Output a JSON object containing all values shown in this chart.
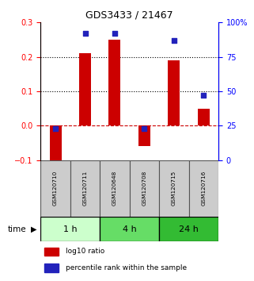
{
  "title": "GDS3433 / 21467",
  "samples": [
    "GSM120710",
    "GSM120711",
    "GSM120648",
    "GSM120708",
    "GSM120715",
    "GSM120716"
  ],
  "log10_ratio": [
    -0.12,
    0.21,
    0.25,
    -0.06,
    0.19,
    0.05
  ],
  "percentile_rank": [
    23,
    92,
    92,
    23,
    87,
    47
  ],
  "left_ylim": [
    -0.1,
    0.3
  ],
  "right_ylim": [
    0,
    100
  ],
  "left_yticks": [
    -0.1,
    0.0,
    0.1,
    0.2,
    0.3
  ],
  "right_yticks": [
    0,
    25,
    50,
    75,
    100
  ],
  "hlines_dotted": [
    0.1,
    0.2
  ],
  "hline_dashed": 0.0,
  "bar_color": "#CC0000",
  "dot_color": "#2222BB",
  "bar_width": 0.4,
  "time_groups": [
    {
      "label": "1 h",
      "indices": [
        0,
        1
      ],
      "color": "#CCFFCC"
    },
    {
      "label": "4 h",
      "indices": [
        2,
        3
      ],
      "color": "#66DD66"
    },
    {
      "label": "24 h",
      "indices": [
        4,
        5
      ],
      "color": "#33BB33"
    }
  ],
  "legend_bar_label": "log10 ratio",
  "legend_dot_label": "percentile rank within the sample",
  "time_label": "time",
  "sample_box_color": "#CCCCCC",
  "sample_box_edge": "#555555"
}
